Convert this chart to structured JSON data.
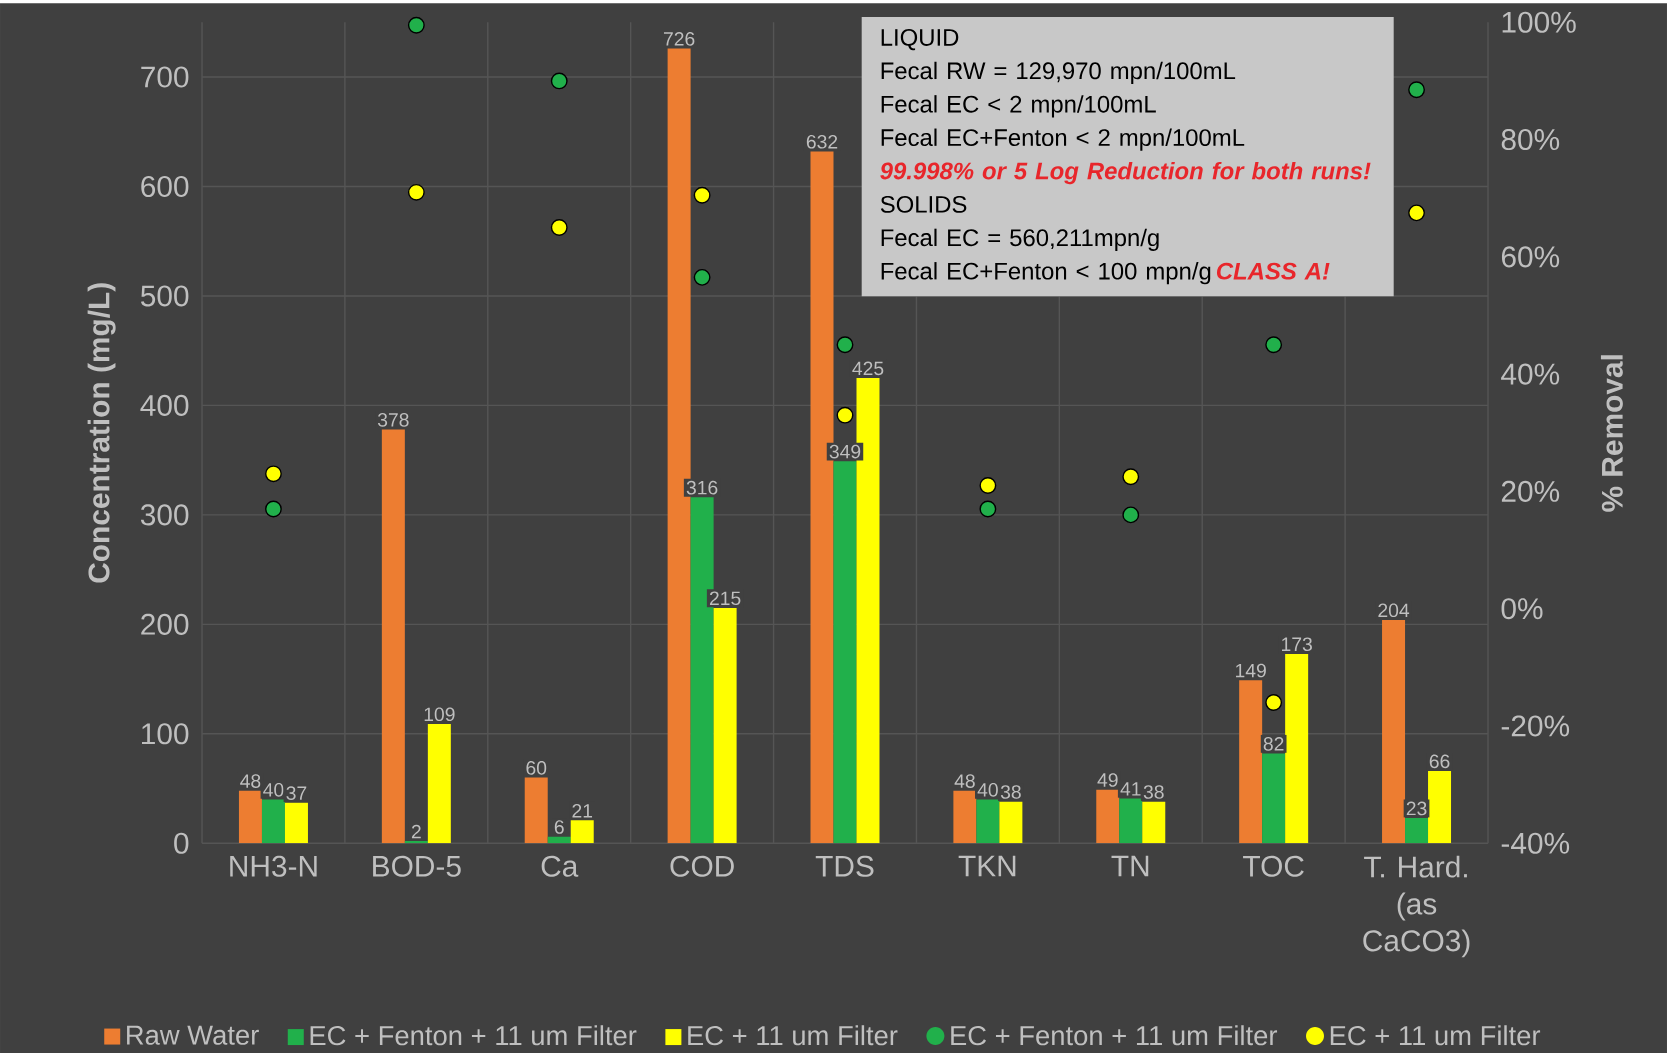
{
  "chart_data": {
    "type": "bar",
    "categories": [
      "NH3-N",
      "BOD-5",
      "Ca",
      "COD",
      "TDS",
      "TKN",
      "TN",
      "TOC",
      "T. Hard. (as CaCO3)"
    ],
    "ylabel": "Concentration (mg/L)",
    "y2label": "% Removal",
    "ylim": [
      0,
      750
    ],
    "yticks": [
      0,
      100,
      200,
      300,
      400,
      500,
      600,
      700
    ],
    "y2lim": [
      -40,
      100
    ],
    "y2ticks": [
      {
        "value": -40,
        "label": "-40%"
      },
      {
        "value": -20,
        "label": "-20%"
      },
      {
        "value": 0,
        "label": "0%"
      },
      {
        "value": 20,
        "label": "20%"
      },
      {
        "value": 40,
        "label": "40%"
      },
      {
        "value": 60,
        "label": "60%"
      },
      {
        "value": 80,
        "label": "80%"
      },
      {
        "value": 100,
        "label": "100%"
      }
    ],
    "series": [
      {
        "name": "Raw Water",
        "color": "#ed7d31",
        "values": [
          48,
          378,
          60,
          726,
          632,
          48,
          49,
          149,
          204
        ],
        "value_labels": [
          "48",
          "378",
          "60",
          "726",
          "632",
          "48",
          "49",
          "149",
          "204"
        ]
      },
      {
        "name": "EC + Fenton + 11 um Filter",
        "color": "#21b04b",
        "values": [
          40,
          2,
          6,
          316,
          349,
          40,
          41,
          82,
          23
        ],
        "value_labels": [
          "40",
          "2",
          "6",
          "316",
          "349",
          "40",
          "41",
          "82",
          "23"
        ]
      },
      {
        "name": "EC + 11 um Filter",
        "color": "#ffff00",
        "values": [
          37,
          109,
          21,
          215,
          425,
          38,
          38,
          173,
          66
        ],
        "value_labels": [
          "37",
          "109",
          "21",
          "215",
          "425",
          "38",
          "38",
          "173",
          "66"
        ]
      },
      {
        "name": "EC + Fenton + 11 um Filter",
        "type": "scatter",
        "axis": "y2",
        "color": "#21b04b",
        "values": [
          17,
          99.5,
          90,
          56.5,
          45,
          17,
          16,
          45,
          88.5
        ]
      },
      {
        "name": "EC + 11 um Filter",
        "type": "scatter",
        "axis": "y2",
        "color": "#ffff00",
        "values": [
          23,
          71,
          65,
          70.5,
          33,
          21,
          22.5,
          -16,
          67.5
        ]
      }
    ],
    "grid": true,
    "legend": "bottom",
    "marker": "circle",
    "annotations": [
      "LIQUID",
      "Fecal RW = 129,970  mpn/100mL",
      "Fecal EC < 2 mpn/100mL",
      "Fecal EC+Fenton < 2 mpn/100mL",
      "99.998% or 5 Log Reduction for both runs!",
      "SOLIDS",
      "Fecal EC = 560,211mpn/g",
      "Fecal EC+Fenton < 100  mpn/g",
      "CLASS A!"
    ]
  }
}
